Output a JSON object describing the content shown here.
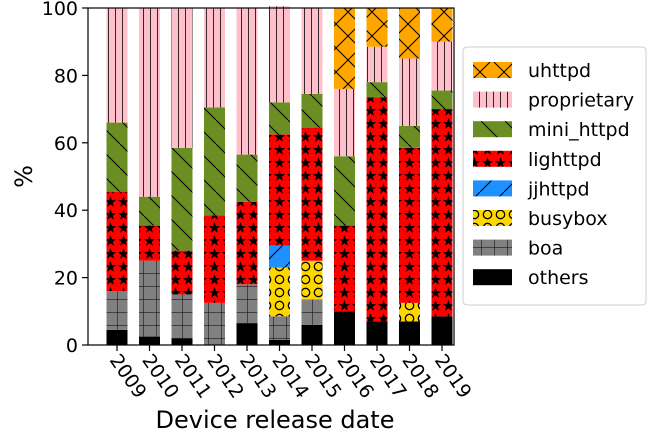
{
  "chart_data": {
    "type": "bar",
    "stacked": true,
    "categories": [
      "2009",
      "2010",
      "2011",
      "2012",
      "2013",
      "2014",
      "2015",
      "2016",
      "2017",
      "2018",
      "2019"
    ],
    "series": [
      {
        "name": "others",
        "color": "#000000",
        "hatch": "none",
        "values": [
          4.5,
          2.5,
          2,
          0,
          6.5,
          1.5,
          6,
          10,
          7,
          7,
          8.5
        ]
      },
      {
        "name": "boa",
        "color": "#808080",
        "hatch": "grid",
        "values": [
          11.5,
          22.5,
          13,
          12.5,
          11.5,
          7,
          7.5,
          0,
          0,
          0,
          0
        ]
      },
      {
        "name": "busybox",
        "color": "#ffd700",
        "hatch": "circles",
        "values": [
          0,
          0,
          0,
          0,
          0,
          14.5,
          11.5,
          0,
          0,
          5.5,
          0
        ]
      },
      {
        "name": "jjhttpd",
        "color": "#1e90ff",
        "hatch": "slash",
        "values": [
          0,
          0,
          0,
          0,
          0,
          6.5,
          0,
          0,
          0,
          0,
          0
        ]
      },
      {
        "name": "lighttpd",
        "color": "#ff0000",
        "hatch": "stars",
        "values": [
          29.5,
          10.5,
          13,
          26,
          24.5,
          33,
          39.5,
          25.5,
          66.5,
          46,
          61.5
        ]
      },
      {
        "name": "mini_httpd",
        "color": "#6b8e23",
        "hatch": "backslash",
        "values": [
          20.5,
          8.5,
          30.5,
          32,
          14,
          9.5,
          10,
          20.5,
          4.5,
          6.5,
          5.5
        ]
      },
      {
        "name": "proprietary",
        "color": "#ffc0cb",
        "hatch": "vlines",
        "values": [
          34,
          56,
          41.5,
          29.5,
          43.5,
          28.5,
          25.5,
          20,
          10.5,
          20,
          14.5
        ]
      },
      {
        "name": "uhttpd",
        "color": "#ffa500",
        "hatch": "xcross",
        "values": [
          0,
          0,
          0,
          0,
          0,
          0,
          0,
          24,
          11.5,
          15,
          10
        ]
      }
    ],
    "xlabel": "Device release date",
    "ylabel": "%",
    "ylim": [
      0,
      100
    ],
    "yticks": [
      0,
      20,
      40,
      60,
      80,
      100
    ],
    "legend_position": "right",
    "legend_order": [
      "uhttpd",
      "proprietary",
      "mini_httpd",
      "lighttpd",
      "jjhttpd",
      "busybox",
      "boa",
      "others"
    ],
    "grid": false
  }
}
